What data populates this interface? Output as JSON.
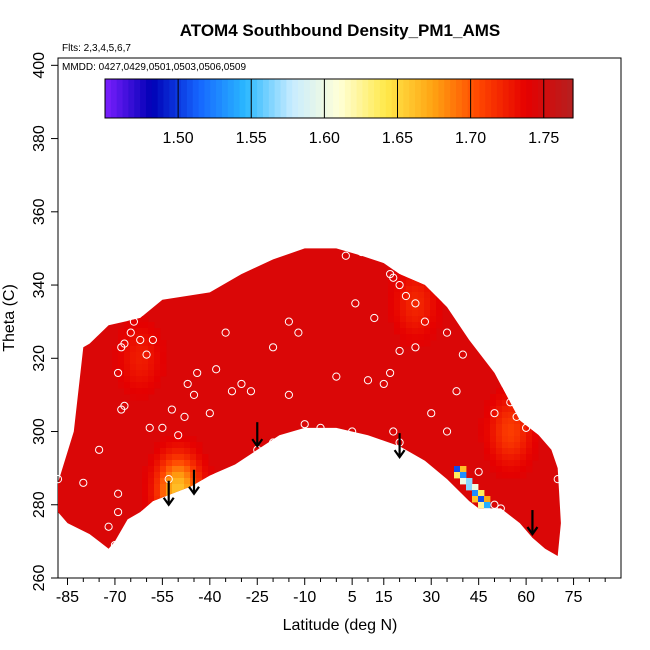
{
  "chart_data": {
    "type": "heatmap",
    "title": "ATOM4 Southbound Density_PM1_AMS",
    "subtitle_flights": "Flts: 2,3,4,5,6,7",
    "subtitle_dates": "MMDD: 0427,0429,0501,0503,0506,0509",
    "xlabel": "Latitude (deg N)",
    "ylabel": "Theta (C)",
    "xlim": [
      -88,
      90
    ],
    "ylim": [
      260,
      402
    ],
    "x_ticks": [
      -85,
      -70,
      -55,
      -40,
      -25,
      -10,
      5,
      15,
      30,
      45,
      60,
      75
    ],
    "y_ticks": [
      260,
      280,
      300,
      320,
      340,
      360,
      380,
      400
    ],
    "colorbar": {
      "range": [
        1.45,
        1.77
      ],
      "ticks": [
        1.5,
        1.55,
        1.6,
        1.65,
        1.7,
        1.75
      ],
      "tick_labels": [
        "1.50",
        "1.55",
        "1.60",
        "1.65",
        "1.70",
        "1.75"
      ],
      "colors": [
        "#7c1fff",
        "#0000b5",
        "#1565ff",
        "#2ab8ff",
        "#c8ecff",
        "#ffffd8",
        "#ffe94a",
        "#ffa412",
        "#ff4500",
        "#e50000",
        "#b52020"
      ]
    },
    "background_value": 1.745,
    "hotspots": [
      {
        "lat": -50,
        "theta": 284,
        "value": 1.66
      },
      {
        "lat": 25,
        "theta": 335,
        "value": 1.72
      },
      {
        "lat": 55,
        "theta": 300,
        "value": 1.71
      },
      {
        "lat": -62,
        "theta": 320,
        "value": 1.725
      }
    ],
    "lowspot": {
      "lat_range": [
        38,
        48
      ],
      "theta_range": [
        278,
        290
      ],
      "value": 1.5
    },
    "upper_boundary": [
      [
        -88,
        286
      ],
      [
        -83,
        300
      ],
      [
        -80,
        323
      ],
      [
        -78,
        324
      ],
      [
        -72,
        329
      ],
      [
        -62,
        331
      ],
      [
        -55,
        336
      ],
      [
        -40,
        338
      ],
      [
        -30,
        343
      ],
      [
        -20,
        347
      ],
      [
        -10,
        350
      ],
      [
        0,
        350
      ],
      [
        8,
        348
      ],
      [
        15,
        346
      ],
      [
        20,
        343
      ],
      [
        28,
        340
      ],
      [
        35,
        334
      ],
      [
        42,
        325
      ],
      [
        50,
        316
      ],
      [
        58,
        303
      ],
      [
        64,
        299
      ],
      [
        68,
        295
      ],
      [
        70,
        290
      ],
      [
        71,
        275
      ],
      [
        70,
        266
      ]
    ],
    "lower_boundary": [
      [
        70,
        266
      ],
      [
        66,
        268
      ],
      [
        62,
        271
      ],
      [
        58,
        275
      ],
      [
        52,
        279
      ],
      [
        45,
        279
      ],
      [
        42,
        281
      ],
      [
        35,
        287
      ],
      [
        28,
        292
      ],
      [
        20,
        296
      ],
      [
        10,
        299
      ],
      [
        0,
        301
      ],
      [
        -10,
        301
      ],
      [
        -18,
        299
      ],
      [
        -25,
        295
      ],
      [
        -32,
        291
      ],
      [
        -40,
        288
      ],
      [
        -46,
        285
      ],
      [
        -52,
        283
      ],
      [
        -58,
        281
      ],
      [
        -62,
        278
      ],
      [
        -66,
        276
      ],
      [
        -70,
        270
      ],
      [
        -72,
        268
      ],
      [
        -75,
        270
      ],
      [
        -78,
        272
      ],
      [
        -85,
        275
      ],
      [
        -88,
        278
      ]
    ],
    "obs_points": [
      [
        -88,
        287
      ],
      [
        -80,
        286
      ],
      [
        -75,
        295
      ],
      [
        -72,
        274
      ],
      [
        -70,
        269
      ],
      [
        -69,
        278
      ],
      [
        -69,
        283
      ],
      [
        -68,
        306
      ],
      [
        -67,
        307
      ],
      [
        -69,
        316
      ],
      [
        -68,
        323
      ],
      [
        -67,
        324
      ],
      [
        -65,
        327
      ],
      [
        -64,
        330
      ],
      [
        -62,
        325
      ],
      [
        -60,
        321
      ],
      [
        -58,
        325
      ],
      [
        -59,
        301
      ],
      [
        -55,
        301
      ],
      [
        -52,
        306
      ],
      [
        -50,
        299
      ],
      [
        -48,
        304
      ],
      [
        -47,
        313
      ],
      [
        -45,
        310
      ],
      [
        -44,
        316
      ],
      [
        -40,
        305
      ],
      [
        -38,
        317
      ],
      [
        -35,
        327
      ],
      [
        -33,
        311
      ],
      [
        -30,
        313
      ],
      [
        -27,
        311
      ],
      [
        -25,
        295
      ],
      [
        -22,
        293
      ],
      [
        -20,
        297
      ],
      [
        -23,
        288
      ],
      [
        -30,
        285
      ],
      [
        -38,
        287
      ],
      [
        -45,
        283
      ],
      [
        -53,
        287
      ],
      [
        -20,
        323
      ],
      [
        -15,
        330
      ],
      [
        -12,
        327
      ],
      [
        -5,
        301
      ],
      [
        5,
        300
      ],
      [
        0,
        315
      ],
      [
        10,
        314
      ],
      [
        15,
        313
      ],
      [
        17,
        316
      ],
      [
        20,
        322
      ],
      [
        25,
        323
      ],
      [
        25,
        335
      ],
      [
        20,
        340
      ],
      [
        17,
        343
      ],
      [
        18,
        342
      ],
      [
        22,
        337
      ],
      [
        8,
        349
      ],
      [
        3,
        348
      ],
      [
        12,
        331
      ],
      [
        28,
        330
      ],
      [
        35,
        327
      ],
      [
        30,
        305
      ],
      [
        35,
        300
      ],
      [
        38,
        311
      ],
      [
        40,
        321
      ],
      [
        45,
        334
      ],
      [
        48,
        325
      ],
      [
        50,
        328
      ],
      [
        50,
        305
      ],
      [
        55,
        308
      ],
      [
        57,
        304
      ],
      [
        60,
        301
      ],
      [
        45,
        289
      ],
      [
        50,
        280
      ],
      [
        52,
        279
      ],
      [
        70,
        287
      ],
      [
        18,
        300
      ],
      [
        20,
        297
      ],
      [
        -10,
        302
      ],
      [
        -15,
        310
      ],
      [
        6,
        335
      ]
    ],
    "arrows_lat": [
      -53,
      -45,
      -25,
      20,
      62
    ],
    "arrows_theta_tip": [
      280,
      283,
      296,
      293,
      272
    ]
  }
}
